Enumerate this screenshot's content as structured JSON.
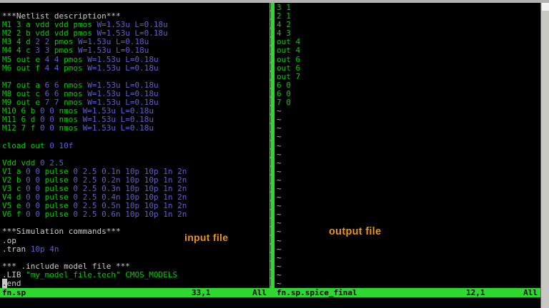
{
  "palette": {
    "background": "#000000",
    "identifier_green": "#00cd00",
    "number_blue": "#5f5fd0",
    "plain_gray": "#cbcbcb",
    "statusbar_green": "#2fd82f",
    "annotation_orange": "#ea9410",
    "cursor_block": "#c8c8c8",
    "window_edge_gray": "#b2b2b2"
  },
  "annotations": {
    "input_label": "input file",
    "output_label": "output file"
  },
  "left_pane": {
    "status": {
      "filename": "fn.sp",
      "ruler": "33,1",
      "scroll": "All"
    },
    "lines": [
      [],
      [
        [
          "w",
          "***Netlist description***"
        ]
      ],
      [
        [
          "g",
          "M1 3 a vdd vdd pmos "
        ],
        [
          "b",
          "W=1.53u L=0.18u"
        ]
      ],
      [
        [
          "g",
          "M2 2 b vdd vdd pmos "
        ],
        [
          "b",
          "W=1.53u L=0.18u"
        ]
      ],
      [
        [
          "g",
          "M3 4 d "
        ],
        [
          "b",
          "2 2 "
        ],
        [
          "g",
          "pmos "
        ],
        [
          "b",
          "W=1.53u L=0.18u"
        ]
      ],
      [
        [
          "g",
          "M4 4 c "
        ],
        [
          "b",
          "3 3 "
        ],
        [
          "g",
          "pmos "
        ],
        [
          "b",
          "W=1.53u L=0.18u"
        ]
      ],
      [
        [
          "g",
          "M5 out e "
        ],
        [
          "b",
          "4 4 "
        ],
        [
          "g",
          "pmos "
        ],
        [
          "b",
          "W=1.53u L=0.18u"
        ]
      ],
      [
        [
          "g",
          "M6 out f "
        ],
        [
          "b",
          "4 4 "
        ],
        [
          "g",
          "pmos "
        ],
        [
          "b",
          "W=1.53u L=0.18u"
        ]
      ],
      [],
      [
        [
          "g",
          "M7 out a "
        ],
        [
          "b",
          "6 6 "
        ],
        [
          "g",
          "nmos "
        ],
        [
          "b",
          "W=1.53u L=0.18u"
        ]
      ],
      [
        [
          "g",
          "M8 out c "
        ],
        [
          "b",
          "6 6 "
        ],
        [
          "g",
          "nmos "
        ],
        [
          "b",
          "W=1.53u L=0.18u"
        ]
      ],
      [
        [
          "g",
          "M9 out e "
        ],
        [
          "b",
          "7 7 "
        ],
        [
          "g",
          "nmos "
        ],
        [
          "b",
          "W=1.53u L=0.18u"
        ]
      ],
      [
        [
          "g",
          "M10 6 b "
        ],
        [
          "b",
          "0 0 "
        ],
        [
          "g",
          "nmos "
        ],
        [
          "b",
          "W=1.53u L=0.18u"
        ]
      ],
      [
        [
          "g",
          "M11 6 d "
        ],
        [
          "b",
          "0 0 "
        ],
        [
          "g",
          "nmos "
        ],
        [
          "b",
          "W=1.53u L=0.18u"
        ]
      ],
      [
        [
          "g",
          "M12 7 f "
        ],
        [
          "b",
          "0 0 "
        ],
        [
          "g",
          "nmos "
        ],
        [
          "b",
          "W=1.53u L=0.18u"
        ]
      ],
      [],
      [
        [
          "g",
          "cload out "
        ],
        [
          "b",
          "0 10f"
        ]
      ],
      [],
      [
        [
          "g",
          "Vdd vdd "
        ],
        [
          "b",
          "0 2.5"
        ]
      ],
      [
        [
          "g",
          "V1 a "
        ],
        [
          "b",
          "0 0 "
        ],
        [
          "g",
          "pulse "
        ],
        [
          "b",
          "0 2.5 0.1n 10p 10p 1n 2n"
        ]
      ],
      [
        [
          "g",
          "V2 b "
        ],
        [
          "b",
          "0 0 "
        ],
        [
          "g",
          "pulse "
        ],
        [
          "b",
          "0 2.5 0.2n 10p 10p 1n 2n"
        ]
      ],
      [
        [
          "g",
          "V3 c "
        ],
        [
          "b",
          "0 0 "
        ],
        [
          "g",
          "pulse "
        ],
        [
          "b",
          "0 2.5 0.3n 10p 10p 1n 2n"
        ]
      ],
      [
        [
          "g",
          "V4 d "
        ],
        [
          "b",
          "0 0 "
        ],
        [
          "g",
          "pulse "
        ],
        [
          "b",
          "0 2.5 0.4n 10p 10p 1n 2n"
        ]
      ],
      [
        [
          "g",
          "V5 e "
        ],
        [
          "b",
          "0 0 "
        ],
        [
          "g",
          "pulse "
        ],
        [
          "b",
          "0 2.5 0.5n 10p 10p 1n 2n"
        ]
      ],
      [
        [
          "g",
          "V6 f "
        ],
        [
          "b",
          "0 0 "
        ],
        [
          "g",
          "pulse "
        ],
        [
          "b",
          "0 2.5 0.6n 10p 10p 1n 2n"
        ]
      ],
      [],
      [
        [
          "w",
          "***Simulation commands***"
        ]
      ],
      [
        [
          "w",
          ".op"
        ]
      ],
      [
        [
          "w",
          ".tran "
        ],
        [
          "b",
          "10p 4n"
        ]
      ],
      [],
      [
        [
          "w",
          "*** .include model file ***"
        ]
      ],
      [
        [
          "w",
          ".LIB "
        ],
        [
          "g",
          "\"my_model_file.tech\" CMOS_MODELS"
        ]
      ],
      [
        [
          "cur",
          "."
        ],
        [
          "w",
          "end"
        ]
      ]
    ]
  },
  "right_pane": {
    "status": {
      "filename": "fn.sp.spice_final",
      "ruler": "12,1",
      "scroll": "All"
    },
    "lines": [
      [
        [
          "g",
          "3 1"
        ]
      ],
      [
        [
          "g",
          "2 1"
        ]
      ],
      [
        [
          "g",
          "4 2"
        ]
      ],
      [
        [
          "g",
          "4 3"
        ]
      ],
      [
        [
          "g",
          "out 4"
        ]
      ],
      [
        [
          "g",
          "out 4"
        ]
      ],
      [
        [
          "g",
          "out 6"
        ]
      ],
      [
        [
          "g",
          "out 6"
        ]
      ],
      [
        [
          "g",
          "out 7"
        ]
      ],
      [
        [
          "g",
          "6 0"
        ]
      ],
      [
        [
          "g",
          "6 0"
        ]
      ],
      [
        [
          "g",
          "7 0"
        ]
      ]
    ],
    "empty_line_marker": "~",
    "empty_line_count": 21
  }
}
